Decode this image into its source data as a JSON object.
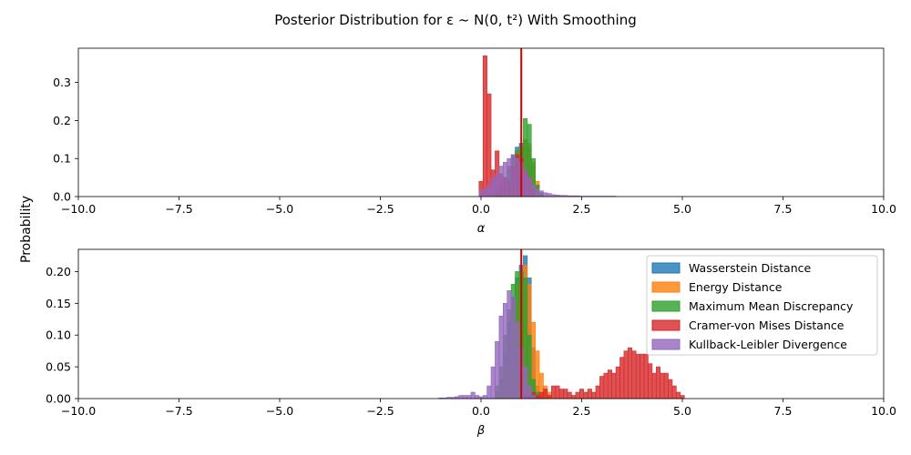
{
  "figure": {
    "title": "Posterior Distribution for ε ~ N(0, t²) With Smoothing",
    "ylabel": "Probability"
  },
  "series_styles": [
    {
      "name": "Wasserstein Distance",
      "color": "#1f77b4"
    },
    {
      "name": "Energy Distance",
      "color": "#ff7f0e"
    },
    {
      "name": "Maximum Mean Discrepancy",
      "color": "#2ca02c"
    },
    {
      "name": "Cramer-von Mises Distance",
      "color": "#d62728"
    },
    {
      "name": "Kullback-Leibler Divergence",
      "color": "#9467bd"
    }
  ],
  "chart_data": [
    {
      "type": "histogram",
      "xlabel": "α",
      "xlim": [
        -10,
        10
      ],
      "ylim": [
        0,
        0.39
      ],
      "xticks": [
        "−10.0",
        "−7.5",
        "−5.0",
        "−2.5",
        "0.0",
        "2.5",
        "5.0",
        "7.5",
        "10.0"
      ],
      "xtick_values": [
        -10,
        -7.5,
        -5,
        -2.5,
        0,
        2.5,
        5,
        7.5,
        10
      ],
      "yticks": [
        "0.0",
        "0.1",
        "0.2",
        "0.3"
      ],
      "ytick_values": [
        0,
        0.1,
        0.2,
        0.3
      ],
      "reference_line": {
        "x": 1.0,
        "color": "#d40000"
      },
      "legend": false,
      "series": [
        {
          "name": "Wasserstein Distance",
          "bin_start": 0.35,
          "bin_width": 0.1,
          "values": [
            0.01,
            0.03,
            0.05,
            0.08,
            0.11,
            0.13,
            0.14,
            0.15,
            0.13,
            0.08,
            0.03,
            0.01
          ]
        },
        {
          "name": "Energy Distance",
          "bin_start": 0.35,
          "bin_width": 0.1,
          "values": [
            0.01,
            0.03,
            0.05,
            0.08,
            0.1,
            0.12,
            0.13,
            0.15,
            0.14,
            0.09,
            0.04,
            0.01
          ]
        },
        {
          "name": "Maximum Mean Discrepancy",
          "bin_start": 0.35,
          "bin_width": 0.1,
          "values": [
            0.01,
            0.02,
            0.05,
            0.07,
            0.1,
            0.12,
            0.13,
            0.205,
            0.19,
            0.1,
            0.03,
            0.01
          ]
        },
        {
          "name": "Cramer-von Mises Distance",
          "bin_start": -0.05,
          "bin_width": 0.1,
          "values": [
            0.04,
            0.37,
            0.27,
            0.07,
            0.12,
            0.06,
            0.05,
            0.04,
            0.08,
            0.11,
            0.1,
            0.07,
            0.05,
            0.02
          ]
        },
        {
          "name": "Kullback-Leibler Divergence",
          "bin_start": -0.05,
          "bin_width": 0.1,
          "values": [
            0.015,
            0.02,
            0.03,
            0.05,
            0.06,
            0.08,
            0.09,
            0.1,
            0.11,
            0.1,
            0.09,
            0.07,
            0.05,
            0.03,
            0.02,
            0.015,
            0.01,
            0.008,
            0.005,
            0.004,
            0.003,
            0.003,
            0.002,
            0.002,
            0.002,
            0.001,
            0.001,
            0.001,
            0.001,
            0.001,
            0.001,
            0.001,
            0.001,
            0.001
          ]
        }
      ]
    },
    {
      "type": "histogram",
      "xlabel": "β",
      "xlim": [
        -10,
        10
      ],
      "ylim": [
        0,
        0.235
      ],
      "xticks": [
        "−10.0",
        "−7.5",
        "−5.0",
        "−2.5",
        "0.0",
        "2.5",
        "5.0",
        "7.5",
        "10.0"
      ],
      "xtick_values": [
        -10,
        -7.5,
        -5,
        -2.5,
        0,
        2.5,
        5,
        7.5,
        10
      ],
      "yticks": [
        "0.00",
        "0.05",
        "0.10",
        "0.15",
        "0.20"
      ],
      "ytick_values": [
        0,
        0.05,
        0.1,
        0.15,
        0.2
      ],
      "reference_line": {
        "x": 1.0,
        "color": "#d40000"
      },
      "legend": true,
      "legend_position": "top-right",
      "series": [
        {
          "name": "Wasserstein Distance",
          "bin_start": 0.35,
          "bin_width": 0.1,
          "values": [
            0.01,
            0.03,
            0.07,
            0.12,
            0.16,
            0.19,
            0.21,
            0.225,
            0.19,
            0.08,
            0.02,
            0.005
          ]
        },
        {
          "name": "Energy Distance",
          "bin_start": 0.45,
          "bin_width": 0.1,
          "values": [
            0.02,
            0.05,
            0.09,
            0.14,
            0.18,
            0.2,
            0.21,
            0.18,
            0.12,
            0.075,
            0.04,
            0.02,
            0.01
          ]
        },
        {
          "name": "Maximum Mean Discrepancy",
          "bin_start": 0.35,
          "bin_width": 0.1,
          "values": [
            0.02,
            0.05,
            0.1,
            0.14,
            0.18,
            0.2,
            0.2,
            0.19,
            0.1,
            0.03,
            0.01
          ]
        },
        {
          "name": "Cramer-von Mises Distance",
          "bin_start": 1.05,
          "bin_width": 0.1,
          "values": [
            0.005,
            0.005,
            0.01,
            0.005,
            0.01,
            0.015,
            0.005,
            0.02,
            0.02,
            0.015,
            0.015,
            0.01,
            0.005,
            0.01,
            0.015,
            0.01,
            0.015,
            0.01,
            0.02,
            0.035,
            0.04,
            0.045,
            0.04,
            0.05,
            0.065,
            0.075,
            0.08,
            0.075,
            0.07,
            0.07,
            0.07,
            0.055,
            0.04,
            0.05,
            0.04,
            0.04,
            0.03,
            0.02,
            0.01,
            0.005
          ]
        },
        {
          "name": "Kullback-Leibler Divergence",
          "bin_start": -1.05,
          "bin_width": 0.1,
          "values": [
            0.001,
            0.001,
            0.002,
            0.002,
            0.003,
            0.005,
            0.005,
            0.005,
            0.01,
            0.005,
            0.003,
            0.005,
            0.02,
            0.05,
            0.09,
            0.13,
            0.15,
            0.17,
            0.16,
            0.12,
            0.08,
            0.05,
            0.02,
            0.005
          ]
        }
      ]
    }
  ]
}
